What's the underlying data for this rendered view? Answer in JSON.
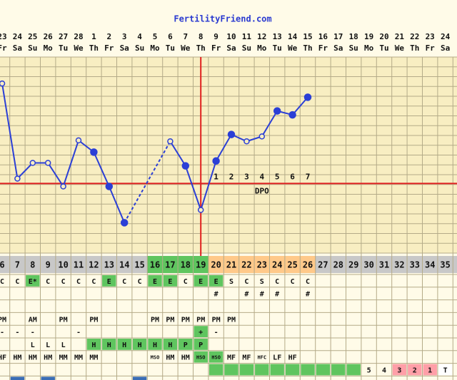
{
  "header": {
    "title": "FertilityFriend.com"
  },
  "chart_data": {
    "type": "line",
    "categories": [
      "23",
      "24",
      "25",
      "26",
      "27",
      "28",
      "1",
      "2",
      "3",
      "4",
      "5",
      "6",
      "7",
      "8",
      "9",
      "10",
      "11",
      "12",
      "13",
      "14",
      "15",
      "16",
      "17",
      "18",
      "19",
      "20",
      "21",
      "22",
      "23",
      "24"
    ],
    "days": [
      "Fr",
      "Sa",
      "Su",
      "Mo",
      "Tu",
      "We",
      "Th",
      "Fr",
      "Sa",
      "Su",
      "Mo",
      "Tu",
      "We",
      "Th",
      "Fr",
      "Sa",
      "Su",
      "Mo",
      "Tu",
      "We",
      "Th",
      "Fr",
      "Sa",
      "Su",
      "Mo",
      "Tu",
      "We",
      "Th",
      "Fr",
      "Sa"
    ],
    "series": [
      {
        "color": "#2b3fd6",
        "values": [
          17.3,
          7.6,
          9.2,
          9.2,
          6.8,
          11.5,
          10.3,
          6.8,
          3.1,
          null,
          null,
          11.4,
          8.9,
          4.4,
          9.4,
          12.1,
          11.4,
          11.9,
          14.5,
          14.1,
          15.9,
          null,
          null,
          null,
          null,
          null,
          null,
          null,
          null,
          null
        ],
        "markers": [
          "open",
          "open",
          "open",
          "open",
          "open",
          "open",
          "filled",
          "filled",
          "filled",
          null,
          null,
          "open",
          "filled",
          "open",
          "filled",
          "filled",
          "open",
          "open",
          "filled",
          "filled",
          "filled",
          null,
          null,
          null,
          null,
          null,
          null,
          null,
          null,
          null
        ]
      }
    ],
    "gap_style": "dashed",
    "ylim": [
      0,
      20
    ],
    "coverline": 7.1,
    "ovulation_index": 13,
    "rule_color": "#e02020",
    "dpo_labels": [
      "1",
      "2",
      "3",
      "4",
      "5",
      "6",
      "7"
    ],
    "dpo_start_index": 14,
    "dpo_title": "DPO",
    "dpo_title_index": 17
  },
  "table": {
    "cycle_days": [
      6,
      7,
      8,
      9,
      10,
      11,
      12,
      13,
      14,
      15,
      16,
      17,
      18,
      19,
      20,
      21,
      22,
      23,
      24,
      25,
      26,
      27,
      28,
      29,
      30,
      31,
      32,
      33,
      34,
      35
    ],
    "cycle_day_fills": [
      "#c8c8c8",
      "#c8c8c8",
      "#c8c8c8",
      "#c8c8c8",
      "#c8c8c8",
      "#c8c8c8",
      "#c8c8c8",
      "#c8c8c8",
      "#c8c8c8",
      "#c8c8c8",
      "#5fc55f",
      "#5fc55f",
      "#5fc55f",
      "#5fc55f",
      "#ffc98a",
      "#ffc98a",
      "#ffc98a",
      "#ffc98a",
      "#ffc98a",
      "#ffc98a",
      "#ffc98a",
      "#c8c8c8",
      "#c8c8c8",
      "#c8c8c8",
      "#c8c8c8",
      "#c8c8c8",
      "#c8c8c8",
      "#c8c8c8",
      "#c8c8c8",
      "#c8c8c8"
    ],
    "rows": [
      {
        "cells": [
          "C",
          "C",
          "E*",
          "C",
          "C",
          "C",
          "C",
          "E",
          "C",
          "C",
          "E",
          "E",
          "C",
          "E",
          "E",
          "S",
          "C",
          "S",
          "C",
          "C",
          "C",
          null,
          null,
          null,
          null,
          null,
          null,
          null,
          null,
          null
        ],
        "fills": [
          null,
          null,
          "#5fc55f",
          null,
          null,
          null,
          null,
          "#5fc55f",
          null,
          null,
          "#5fc55f",
          "#5fc55f",
          null,
          "#5fc55f",
          "#5fc55f",
          null,
          null,
          null,
          null,
          null,
          null,
          null,
          null,
          null,
          null,
          null,
          null,
          null,
          null,
          null
        ]
      },
      {
        "cells": [
          null,
          null,
          null,
          null,
          null,
          null,
          null,
          null,
          null,
          null,
          null,
          null,
          null,
          null,
          "#",
          null,
          "#",
          "#",
          "#",
          null,
          "#",
          null,
          null,
          null,
          null,
          null,
          null,
          null,
          null,
          null
        ],
        "fills": [
          null,
          null,
          null,
          null,
          null,
          null,
          null,
          null,
          null,
          null,
          null,
          null,
          null,
          null,
          null,
          null,
          null,
          null,
          null,
          null,
          null,
          null,
          null,
          null,
          null,
          null,
          null,
          null,
          null,
          null
        ]
      },
      {
        "cells": [
          null,
          null,
          null,
          null,
          null,
          null,
          null,
          null,
          null,
          null,
          null,
          null,
          null,
          null,
          null,
          null,
          null,
          null,
          null,
          null,
          null,
          null,
          null,
          null,
          null,
          null,
          null,
          null,
          null,
          null
        ],
        "fills": [
          null,
          null,
          null,
          null,
          null,
          null,
          null,
          null,
          null,
          null,
          null,
          null,
          null,
          null,
          null,
          null,
          null,
          null,
          null,
          null,
          null,
          null,
          null,
          null,
          null,
          null,
          null,
          null,
          null,
          null
        ]
      },
      {
        "cells": [
          "PM",
          null,
          "AM",
          null,
          "PM",
          null,
          "PM",
          null,
          null,
          null,
          "PM",
          "PM",
          "PM",
          "PM",
          "PM",
          "PM",
          null,
          null,
          null,
          null,
          null,
          null,
          null,
          null,
          null,
          null,
          null,
          null,
          null,
          null
        ],
        "fills": [
          null,
          null,
          null,
          null,
          null,
          null,
          null,
          null,
          null,
          null,
          null,
          null,
          null,
          null,
          null,
          null,
          null,
          null,
          null,
          null,
          null,
          null,
          null,
          null,
          null,
          null,
          null,
          null,
          null,
          null
        ]
      },
      {
        "cells": [
          "-",
          "-",
          "-",
          null,
          null,
          "-",
          null,
          null,
          null,
          null,
          null,
          null,
          null,
          "+",
          "-",
          null,
          null,
          null,
          null,
          null,
          null,
          null,
          null,
          null,
          null,
          null,
          null,
          null,
          null,
          null
        ],
        "fills": [
          null,
          null,
          null,
          null,
          null,
          null,
          null,
          null,
          null,
          null,
          null,
          null,
          null,
          "#5fc55f",
          null,
          null,
          null,
          null,
          null,
          null,
          null,
          null,
          null,
          null,
          null,
          null,
          null,
          null,
          null,
          null
        ]
      },
      {
        "cells": [
          null,
          null,
          "L",
          "L",
          "L",
          null,
          "H",
          "H",
          "H",
          "H",
          "H",
          "H",
          "P",
          "P",
          null,
          null,
          null,
          null,
          null,
          null,
          null,
          null,
          null,
          null,
          null,
          null,
          null,
          null,
          null,
          null
        ],
        "fills": [
          null,
          null,
          null,
          null,
          null,
          null,
          "#5fc55f",
          "#5fc55f",
          "#5fc55f",
          "#5fc55f",
          "#5fc55f",
          "#5fc55f",
          "#5fc55f",
          "#5fc55f",
          null,
          null,
          null,
          null,
          null,
          null,
          null,
          null,
          null,
          null,
          null,
          null,
          null,
          null,
          null,
          null
        ]
      },
      {
        "cells": [
          "HF",
          "HM",
          "HM",
          "HM",
          "MM",
          "MM",
          "MM",
          null,
          null,
          null,
          "MSO",
          "HM",
          "HM",
          "HSO",
          "HSO",
          "MF",
          "MF",
          "HFC",
          "LF",
          "HF",
          null,
          null,
          null,
          null,
          null,
          null,
          null,
          null,
          null,
          null
        ],
        "fills": [
          null,
          null,
          null,
          null,
          null,
          null,
          null,
          null,
          null,
          null,
          null,
          null,
          null,
          "#5fc55f",
          "#5fc55f",
          null,
          null,
          null,
          null,
          null,
          null,
          null,
          null,
          null,
          null,
          null,
          null,
          null,
          null,
          null
        ]
      },
      {
        "cells": [
          null,
          null,
          null,
          null,
          null,
          null,
          null,
          null,
          null,
          null,
          null,
          null,
          null,
          null,
          null,
          null,
          null,
          null,
          null,
          null,
          null,
          null,
          null,
          null,
          "5",
          "4",
          "3",
          "2",
          "1",
          "T"
        ],
        "fills": [
          null,
          null,
          null,
          null,
          null,
          null,
          null,
          null,
          null,
          null,
          null,
          null,
          null,
          null,
          "#5fc55f",
          "#5fc55f",
          "#5fc55f",
          "#5fc55f",
          "#5fc55f",
          "#5fc55f",
          "#5fc55f",
          "#5fc55f",
          "#5fc55f",
          "#5fc55f",
          null,
          null,
          "#ff9fa8",
          "#ff9fa8",
          "#ff9fa8",
          "#ffffff"
        ]
      },
      {
        "cells": [
          null,
          null,
          null,
          null,
          null,
          null,
          null,
          null,
          null,
          null,
          null,
          null,
          null,
          null,
          null,
          null,
          null,
          null,
          null,
          null,
          null,
          null,
          null,
          null,
          null,
          null,
          null,
          null,
          null,
          null
        ],
        "fills": [
          null,
          "#3a6db5",
          null,
          "#3a6db5",
          null,
          null,
          null,
          null,
          null,
          "#3a6db5",
          null,
          null,
          null,
          null,
          null,
          null,
          null,
          null,
          null,
          null,
          null,
          null,
          null,
          null,
          null,
          null,
          null,
          null,
          null,
          null
        ]
      }
    ]
  }
}
